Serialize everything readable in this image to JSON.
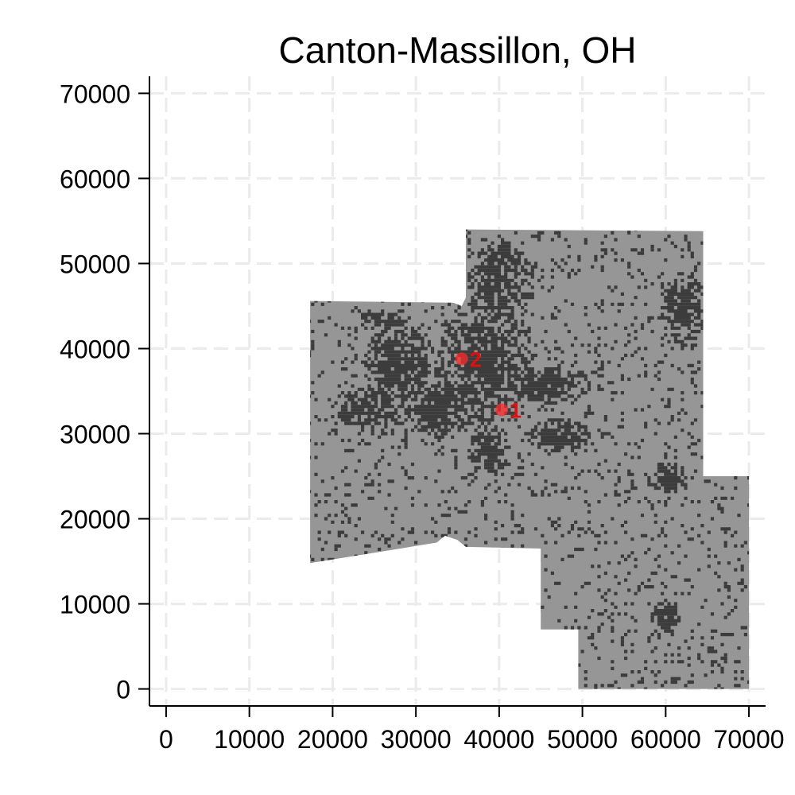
{
  "chart_data": {
    "type": "scatter",
    "title": "Canton-Massillon, OH",
    "xlabel": "",
    "ylabel": "",
    "xlim": [
      -2000,
      72000
    ],
    "ylim": [
      -2000,
      72000
    ],
    "x_ticks": [
      0,
      10000,
      20000,
      30000,
      40000,
      50000,
      60000,
      70000
    ],
    "y_ticks": [
      0,
      10000,
      20000,
      30000,
      40000,
      50000,
      60000,
      70000
    ],
    "grid": "dashed light gray, both axes",
    "colors": {
      "region_fill": "#969696",
      "dense_cells": "#3c3c3c",
      "marker": "#ff2a2a",
      "marker_label": "#e01010"
    },
    "region_outline": [
      [
        17300,
        45600
      ],
      [
        34500,
        45400
      ],
      [
        35500,
        45000
      ],
      [
        36000,
        46000
      ],
      [
        36000,
        54000
      ],
      [
        64500,
        53800
      ],
      [
        64500,
        25000
      ],
      [
        70000,
        25000
      ],
      [
        70000,
        0
      ],
      [
        49500,
        0
      ],
      [
        49500,
        7000
      ],
      [
        45000,
        7000
      ],
      [
        45000,
        16500
      ],
      [
        36000,
        16700
      ],
      [
        35000,
        17500
      ],
      [
        33500,
        18000
      ],
      [
        32500,
        17200
      ],
      [
        30000,
        16800
      ],
      [
        17300,
        14800
      ]
    ],
    "dense_areas": [
      {
        "cx": 38000,
        "cy": 38000,
        "rx": 6500,
        "ry": 8000
      },
      {
        "cx": 33000,
        "cy": 33000,
        "rx": 5000,
        "ry": 3500
      },
      {
        "cx": 28000,
        "cy": 38000,
        "rx": 4500,
        "ry": 5500
      },
      {
        "cx": 24000,
        "cy": 33000,
        "rx": 5000,
        "ry": 2500
      },
      {
        "cx": 40000,
        "cy": 48000,
        "rx": 4000,
        "ry": 5500
      },
      {
        "cx": 45000,
        "cy": 36000,
        "rx": 6000,
        "ry": 2500
      },
      {
        "cx": 47000,
        "cy": 30000,
        "rx": 4000,
        "ry": 2000
      },
      {
        "cx": 62000,
        "cy": 45000,
        "rx": 2800,
        "ry": 4500
      },
      {
        "cx": 60000,
        "cy": 8500,
        "rx": 2000,
        "ry": 2000
      },
      {
        "cx": 60000,
        "cy": 25000,
        "rx": 2500,
        "ry": 1800
      },
      {
        "cx": 38500,
        "cy": 28000,
        "rx": 2500,
        "ry": 3000
      },
      {
        "cx": 26000,
        "cy": 43500,
        "rx": 3500,
        "ry": 1500
      }
    ],
    "points": [
      {
        "label": "1",
        "x": 40300,
        "y": 32800
      },
      {
        "label": "2",
        "x": 35500,
        "y": 38800
      }
    ]
  }
}
